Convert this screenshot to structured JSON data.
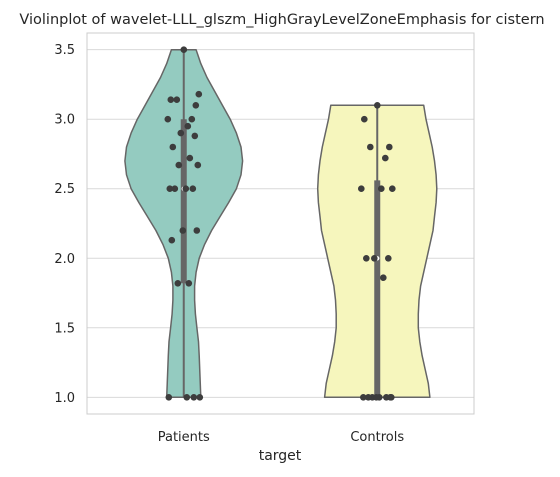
{
  "chart_data": {
    "type": "violin",
    "title": "Violinplot of wavelet-LLL_glszm_HighGrayLevelZoneEmphasis for cistern",
    "xlabel": "target",
    "ylabel": "",
    "categories": [
      "Patients",
      "Controls"
    ],
    "ylim": [
      0.88,
      3.62
    ],
    "yticks": [
      "1.0",
      "1.5",
      "2.0",
      "2.5",
      "3.0",
      "3.5"
    ],
    "grid": "horizontal",
    "colors": {
      "Patients": "#94cbc0",
      "Controls": "#f6f6bd",
      "outline": "#666666",
      "points": "#3d3d3d",
      "box": "#666666",
      "grid": "#d9d9d9"
    },
    "violins": [
      {
        "name": "Patients",
        "min": 1.0,
        "max": 3.5,
        "q1": 1.82,
        "median": 2.5,
        "q3": 3.0,
        "profile": [
          [
            1.0,
            0.22
          ],
          [
            1.15,
            0.21
          ],
          [
            1.3,
            0.2
          ],
          [
            1.4,
            0.19
          ],
          [
            1.5,
            0.17
          ],
          [
            1.6,
            0.15
          ],
          [
            1.7,
            0.14
          ],
          [
            1.8,
            0.14
          ],
          [
            1.9,
            0.16
          ],
          [
            2.0,
            0.2
          ],
          [
            2.1,
            0.27
          ],
          [
            2.2,
            0.36
          ],
          [
            2.3,
            0.47
          ],
          [
            2.4,
            0.58
          ],
          [
            2.5,
            0.68
          ],
          [
            2.6,
            0.74
          ],
          [
            2.7,
            0.76
          ],
          [
            2.8,
            0.74
          ],
          [
            2.9,
            0.68
          ],
          [
            3.0,
            0.6
          ],
          [
            3.1,
            0.5
          ],
          [
            3.2,
            0.4
          ],
          [
            3.3,
            0.3
          ],
          [
            3.4,
            0.22
          ],
          [
            3.5,
            0.16
          ]
        ],
        "points": [
          3.5,
          3.14,
          3.1,
          3.14,
          3.0,
          3.0,
          3.18,
          2.95,
          2.9,
          2.88,
          2.8,
          2.72,
          2.67,
          2.67,
          2.5,
          2.5,
          2.5,
          2.5,
          2.2,
          2.2,
          2.13,
          1.82,
          1.82,
          1.0,
          1.0,
          1.0,
          1.0
        ]
      },
      {
        "name": "Controls",
        "min": 1.0,
        "max": 3.1,
        "q1": 1.0,
        "median": 2.0,
        "q3": 2.56,
        "profile": [
          [
            1.0,
            0.68
          ],
          [
            1.1,
            0.66
          ],
          [
            1.2,
            0.62
          ],
          [
            1.3,
            0.58
          ],
          [
            1.4,
            0.55
          ],
          [
            1.5,
            0.53
          ],
          [
            1.6,
            0.53
          ],
          [
            1.7,
            0.54
          ],
          [
            1.8,
            0.56
          ],
          [
            1.9,
            0.6
          ],
          [
            2.0,
            0.64
          ],
          [
            2.1,
            0.68
          ],
          [
            2.2,
            0.72
          ],
          [
            2.3,
            0.74
          ],
          [
            2.4,
            0.76
          ],
          [
            2.5,
            0.77
          ],
          [
            2.6,
            0.76
          ],
          [
            2.7,
            0.74
          ],
          [
            2.8,
            0.71
          ],
          [
            2.9,
            0.67
          ],
          [
            3.0,
            0.63
          ],
          [
            3.1,
            0.6
          ]
        ],
        "points": [
          3.1,
          3.0,
          2.8,
          2.8,
          2.72,
          2.5,
          2.5,
          2.5,
          2.0,
          2.0,
          2.0,
          1.86,
          1.0,
          1.0,
          1.0,
          1.0,
          1.0,
          1.0,
          1.0,
          1.0
        ]
      }
    ]
  }
}
